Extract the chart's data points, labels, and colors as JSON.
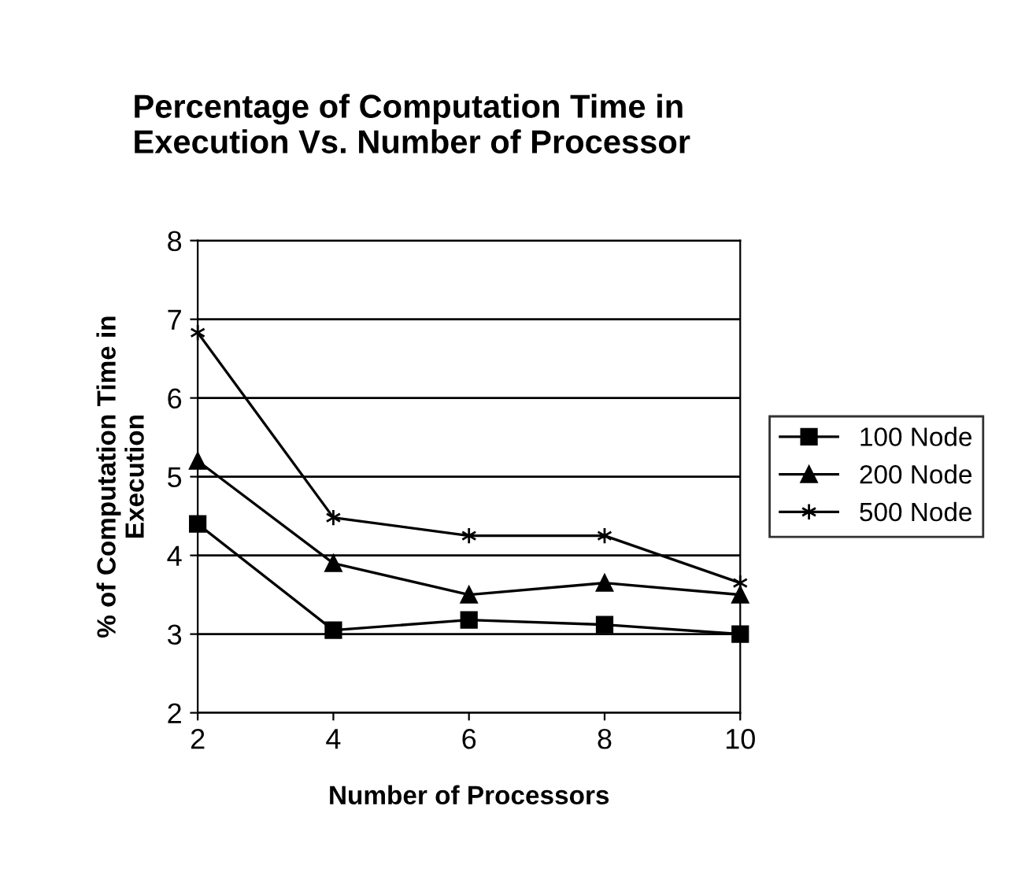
{
  "chart_data": {
    "type": "line",
    "title": "Percentage of Computation Time in\nExecution Vs. Number of Processor",
    "xlabel": "Number of Processors",
    "ylabel": "% of Computation Time in\nExecution",
    "x": [
      2,
      4,
      6,
      8,
      10
    ],
    "xlim": [
      2,
      10
    ],
    "xticks": [
      2,
      4,
      6,
      8,
      10
    ],
    "ylim": [
      2,
      8
    ],
    "yticks": [
      2,
      3,
      4,
      5,
      6,
      7,
      8
    ],
    "grid": "y",
    "legend": "right",
    "series": [
      {
        "name": "100 Node",
        "color": "#000000",
        "marker": "square",
        "values": [
          4.4,
          3.05,
          3.18,
          3.12,
          3.0
        ]
      },
      {
        "name": "200 Node",
        "color": "#000000",
        "marker": "triangle",
        "values": [
          5.2,
          3.9,
          3.5,
          3.65,
          3.5
        ]
      },
      {
        "name": "500 Node",
        "color": "#000000",
        "marker": "cross",
        "values": [
          6.83,
          4.48,
          4.25,
          4.25,
          3.65
        ]
      }
    ]
  }
}
